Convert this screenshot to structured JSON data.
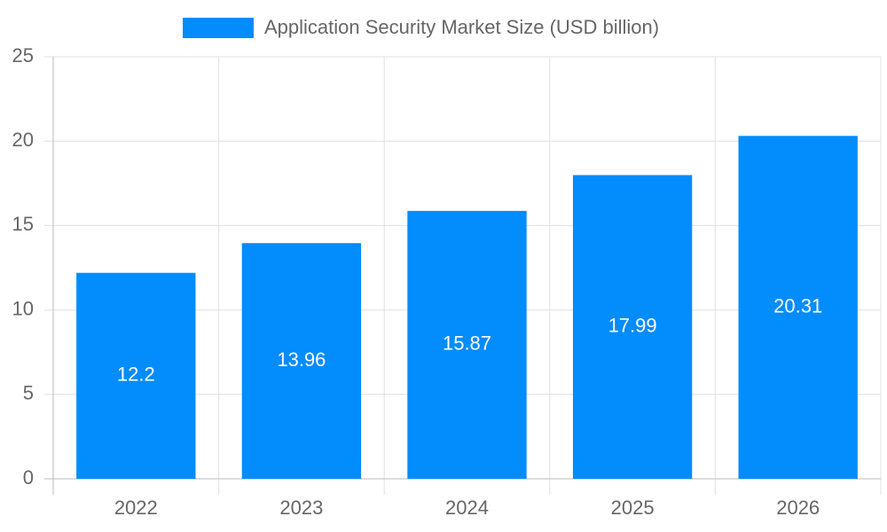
{
  "chart_data": {
    "type": "bar",
    "categories": [
      "2022",
      "2023",
      "2024",
      "2025",
      "2026"
    ],
    "series": [
      {
        "name": "Application Security Market Size (USD billion)",
        "color": "#038cfc",
        "values": [
          12.2,
          13.96,
          15.87,
          17.99,
          20.31
        ]
      }
    ],
    "ylim": [
      0,
      25
    ],
    "yticks": [
      0,
      5,
      10,
      15,
      20,
      25
    ],
    "grid": true,
    "legend": "top"
  }
}
